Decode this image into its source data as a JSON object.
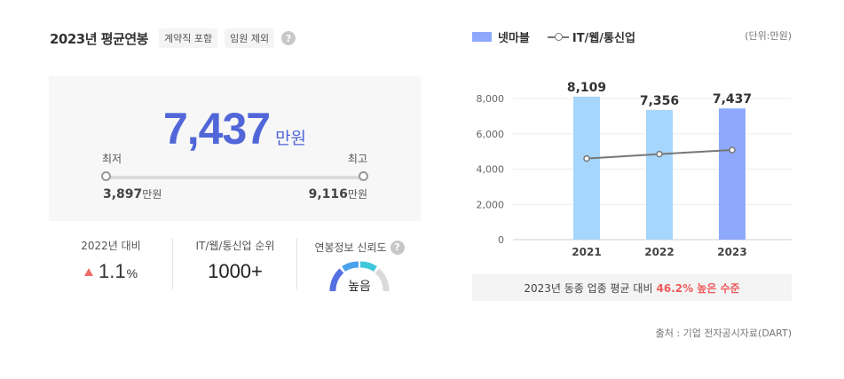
{
  "header": {
    "title": "2023년 평균연봉",
    "tags": [
      "계약직 포함",
      "임원 제외"
    ],
    "help": "?"
  },
  "salary": {
    "average": "7,437",
    "unit": "만원",
    "min_label": "최저",
    "max_label": "최고",
    "min_value": "3,897",
    "max_value": "9,116",
    "value_unit": "만원"
  },
  "stats": {
    "growth_label": "2022년 대비",
    "growth_value": "1.1",
    "growth_unit": "%",
    "rank_label": "IT/웹/통신업 순위",
    "rank_value": "1000+",
    "trust_label": "연봉정보 신뢰도",
    "trust_value": "높음",
    "trust_level": 0.8
  },
  "legend": {
    "company": "넷마블",
    "industry": "IT/웹/통신업",
    "unit": "(단위:만원)"
  },
  "chart_data": {
    "type": "bar",
    "categories": [
      "2021",
      "2022",
      "2023"
    ],
    "ylim": [
      0,
      8000
    ],
    "yticks": [
      "8,000",
      "6,000",
      "4,000",
      "2,000",
      "0"
    ],
    "series": [
      {
        "name": "넷마블",
        "values": [
          8109,
          7356,
          7437
        ],
        "labels": [
          "8,109",
          "7,356",
          "7,437"
        ],
        "colors": [
          "#a6d6fc",
          "#a6d6fc",
          "#8ea9fb"
        ]
      },
      {
        "name": "IT/웹/통신업",
        "values": [
          4600,
          4850,
          5080
        ]
      }
    ]
  },
  "comparison": {
    "text": "2023년 동종 업종 평균 대비",
    "highlight": "46.2% 높은 수준"
  },
  "source": "출처 : 기업 전자공시자료(DART)"
}
